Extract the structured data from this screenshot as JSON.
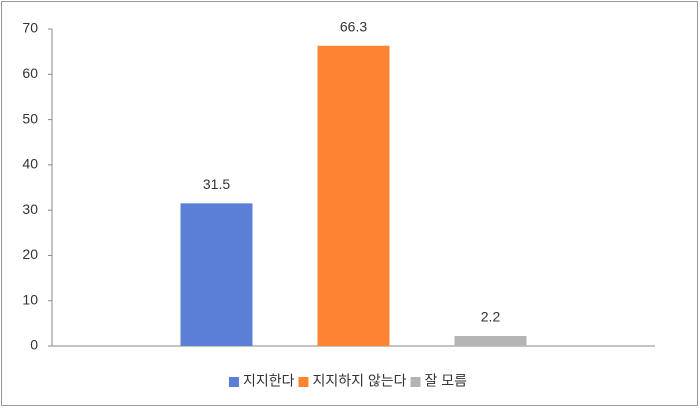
{
  "chart_data": {
    "type": "bar",
    "categories": [
      null
    ],
    "series": [
      {
        "name": "지지한다",
        "color": "#5b7fd6",
        "values": [
          31.5
        ]
      },
      {
        "name": "지지하지 않는다",
        "color": "#fd8433",
        "values": [
          66.3
        ]
      },
      {
        "name": "잘 모름",
        "color": "#b4b4b4",
        "values": [
          2.2
        ]
      }
    ],
    "ylim": [
      0,
      70
    ],
    "yticks": [
      0,
      10,
      20,
      30,
      40,
      50,
      60,
      70
    ],
    "grid": false,
    "legend": "bottom"
  }
}
